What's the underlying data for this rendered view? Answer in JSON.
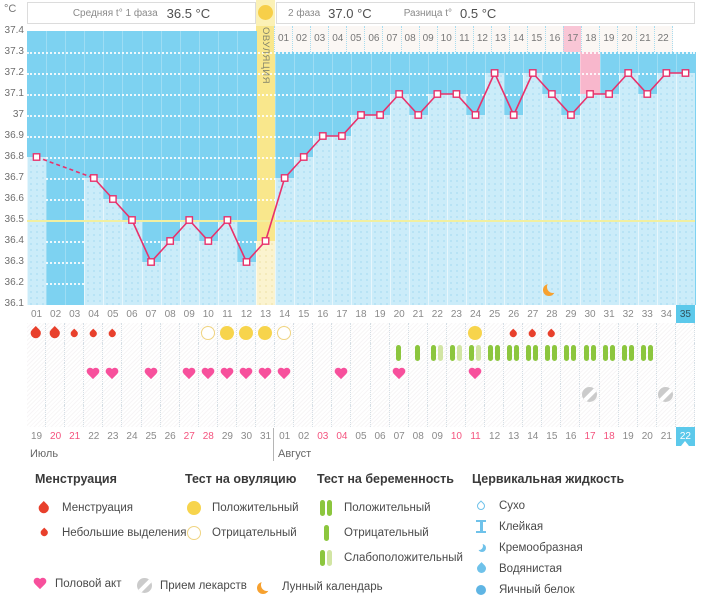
{
  "header": {
    "unit_label": "°C",
    "phase1_label": "Средняя t° 1 фаза",
    "phase1_value": "36.5 °C",
    "phase2_label": "2 фаза",
    "phase2_value": "37.0 °C",
    "diff_label": "Разница t°",
    "diff_value": "0.5 °C",
    "ovulation_label": "ОВУЛЯЦИЯ"
  },
  "months": [
    {
      "label": "Июль",
      "from_day": 1
    },
    {
      "label": "Август",
      "from_day": 14
    }
  ],
  "chart_data": {
    "type": "line",
    "unit": "°C",
    "ylim": [
      36.1,
      37.4
    ],
    "y_ticks": [
      "37.4",
      "37.3",
      "37.2",
      "37.1",
      "37",
      "36.9",
      "36.8",
      "36.7",
      "36.6",
      "36.5",
      "36.4",
      "36.3",
      "36.2",
      "36.1"
    ],
    "coverline": 36.5,
    "phase1_avg": 36.5,
    "phase2_avg": 37.0,
    "temp_difference": 0.5,
    "ovulation_day": 13,
    "phase2_highlight_label": "17",
    "current_cycle_day": 35,
    "days": [
      {
        "c": "01",
        "date": "19",
        "t": 36.8,
        "mens": "big"
      },
      {
        "c": "02",
        "date": "20",
        "t": null,
        "mens": "big",
        "red": true
      },
      {
        "c": "03",
        "date": "21",
        "t": null,
        "mens": "small",
        "red": true
      },
      {
        "c": "04",
        "date": "22",
        "t": 36.7,
        "mens": "small",
        "heart": true
      },
      {
        "c": "05",
        "date": "23",
        "t": 36.6,
        "mens": "small",
        "heart": true
      },
      {
        "c": "06",
        "date": "24",
        "t": 36.5
      },
      {
        "c": "07",
        "date": "25",
        "t": 36.3,
        "heart": true
      },
      {
        "c": "08",
        "date": "26",
        "t": 36.4
      },
      {
        "c": "09",
        "date": "27",
        "t": 36.5,
        "heart": true,
        "red": true
      },
      {
        "c": "10",
        "date": "28",
        "t": 36.4,
        "ov": "neg",
        "heart": true,
        "red": true
      },
      {
        "c": "11",
        "date": "29",
        "t": 36.5,
        "ov": "pos",
        "heart": true
      },
      {
        "c": "12",
        "date": "30",
        "t": 36.3,
        "ov": "pos",
        "heart": true
      },
      {
        "c": "13",
        "date": "31",
        "t": 36.4,
        "ov": "pos",
        "heart": true,
        "ovulation": true
      },
      {
        "c": "14",
        "p2": "01",
        "date": "01",
        "t": 36.7,
        "ov": "neg",
        "heart": true
      },
      {
        "c": "15",
        "p2": "02",
        "date": "02",
        "t": 36.8
      },
      {
        "c": "16",
        "p2": "03",
        "date": "03",
        "t": 36.9,
        "red": true
      },
      {
        "c": "17",
        "p2": "04",
        "date": "04",
        "t": 36.9,
        "heart": true,
        "red": true
      },
      {
        "c": "18",
        "p2": "05",
        "date": "05",
        "t": 37.0
      },
      {
        "c": "19",
        "p2": "06",
        "date": "06",
        "t": 37.0
      },
      {
        "c": "20",
        "p2": "07",
        "date": "07",
        "t": 37.1,
        "preg": "neg",
        "heart": true
      },
      {
        "c": "21",
        "p2": "08",
        "date": "08",
        "t": 37.0,
        "preg": "neg"
      },
      {
        "c": "22",
        "p2": "09",
        "date": "09",
        "t": 37.1,
        "preg": "weak"
      },
      {
        "c": "23",
        "p2": "10",
        "date": "10",
        "t": 37.1,
        "preg": "weak",
        "red": true
      },
      {
        "c": "24",
        "p2": "11",
        "date": "11",
        "t": 37.0,
        "ov": "pos",
        "preg": "weak",
        "heart": true,
        "red": true
      },
      {
        "c": "25",
        "p2": "12",
        "date": "12",
        "t": 37.2,
        "preg": "pos"
      },
      {
        "c": "26",
        "p2": "13",
        "date": "13",
        "t": 37.0,
        "mens": "small",
        "preg": "pos"
      },
      {
        "c": "27",
        "p2": "14",
        "date": "14",
        "t": 37.2,
        "mens": "small",
        "preg": "pos"
      },
      {
        "c": "28",
        "p2": "15",
        "date": "15",
        "t": 37.1,
        "mens": "small",
        "preg": "pos",
        "moon": true
      },
      {
        "c": "29",
        "p2": "16",
        "date": "16",
        "t": 37.0,
        "preg": "pos"
      },
      {
        "c": "30",
        "p2": "17",
        "date": "17",
        "t": 37.1,
        "preg": "pos",
        "med": true,
        "red": true,
        "pink": true
      },
      {
        "c": "31",
        "p2": "18",
        "date": "18",
        "t": 37.1,
        "preg": "pos",
        "red": true
      },
      {
        "c": "32",
        "p2": "19",
        "date": "19",
        "t": 37.2,
        "preg": "pos"
      },
      {
        "c": "33",
        "p2": "20",
        "date": "20",
        "t": 37.1,
        "preg": "pos"
      },
      {
        "c": "34",
        "p2": "21",
        "date": "21",
        "t": 37.2,
        "med": true
      },
      {
        "c": "35",
        "p2": "22",
        "date": "22",
        "t": 37.2,
        "today": true
      }
    ]
  },
  "legend": {
    "columns": [
      {
        "title": "Менструация",
        "items": [
          {
            "icon": "drop-big",
            "label": "Менструация"
          },
          {
            "icon": "drop-small",
            "label": "Небольшие выделения"
          }
        ]
      },
      {
        "title": "Тест на овуляцию",
        "items": [
          {
            "icon": "ovtest-positive",
            "label": "Положительный"
          },
          {
            "icon": "ovtest-negative",
            "label": "Отрицательный"
          }
        ]
      },
      {
        "title": "Тест на беременность",
        "items": [
          {
            "icon": "pregtest-positive",
            "label": "Положительный"
          },
          {
            "icon": "pregtest-negative",
            "label": "Отрицательный"
          },
          {
            "icon": "pregtest-weak",
            "label": "Слабоположительный"
          }
        ]
      },
      {
        "title": "Цервикальная жидкость",
        "items": [
          {
            "icon": "cf-dry",
            "label": "Сухо"
          },
          {
            "icon": "cf-sticky",
            "label": "Клейкая"
          },
          {
            "icon": "cf-creamy",
            "label": "Кремообразная"
          },
          {
            "icon": "cf-watery",
            "label": "Водянистая"
          },
          {
            "icon": "cf-eggwhite",
            "label": "Яичный белок"
          }
        ]
      }
    ],
    "extras": [
      {
        "icon": "heart",
        "label": "Половой акт"
      },
      {
        "icon": "pill",
        "label": "Прием лекарств"
      },
      {
        "icon": "moon",
        "label": "Лунный календарь"
      }
    ]
  },
  "colors": {
    "plot_bg": "#7DD2F1",
    "bar_fill": "#CBECF9",
    "line": "#E8316B",
    "coverline": "#F1EFA0",
    "ovulation_column": "#F9E78C",
    "highlight_pink": "#F8B7CC",
    "today_cyan": "#5CC9EB",
    "weekend_red": "#F4537E",
    "test_green": "#8CC63E",
    "test_green_light": "#D2E5A4",
    "heart_pink": "#F7509C",
    "moon_orange": "#F7A12F",
    "drop_red": "#E8402C",
    "cervical_blue": "#6FC2EA"
  }
}
